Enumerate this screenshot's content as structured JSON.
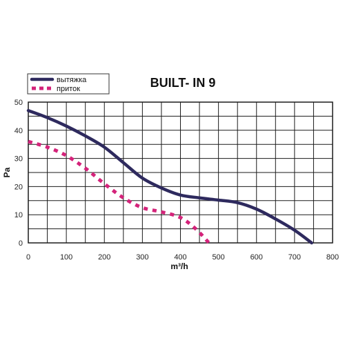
{
  "chart_data": {
    "type": "line",
    "title": "BUILT- IN 9",
    "xlabel": "m³/h",
    "ylabel": "Pa",
    "xlim": [
      0,
      800
    ],
    "ylim": [
      0,
      50
    ],
    "x_ticks": [
      "0",
      "100",
      "200",
      "300",
      "400",
      "500",
      "600",
      "700",
      "800"
    ],
    "y_ticks": [
      "0",
      "10",
      "20",
      "30",
      "40",
      "50"
    ],
    "grid": true,
    "legend_position": "top-left",
    "series": [
      {
        "name": "вытяжка",
        "color": "#2e2a5e",
        "style": "solid",
        "points": [
          [
            0,
            47
          ],
          [
            50,
            44.5
          ],
          [
            100,
            41.5
          ],
          [
            150,
            38
          ],
          [
            200,
            34
          ],
          [
            250,
            28.5
          ],
          [
            300,
            23
          ],
          [
            350,
            19.5
          ],
          [
            400,
            17
          ],
          [
            450,
            16
          ],
          [
            500,
            15.2
          ],
          [
            550,
            14.3
          ],
          [
            600,
            12
          ],
          [
            650,
            8.5
          ],
          [
            700,
            4.5
          ],
          [
            745,
            0
          ]
        ]
      },
      {
        "name": "приток",
        "color": "#d4237a",
        "style": "dotted",
        "points": [
          [
            0,
            36
          ],
          [
            50,
            34
          ],
          [
            100,
            31
          ],
          [
            150,
            26.5
          ],
          [
            200,
            21
          ],
          [
            250,
            16
          ],
          [
            300,
            12.5
          ],
          [
            350,
            11
          ],
          [
            400,
            9
          ],
          [
            440,
            5
          ],
          [
            475,
            0
          ]
        ]
      }
    ]
  }
}
